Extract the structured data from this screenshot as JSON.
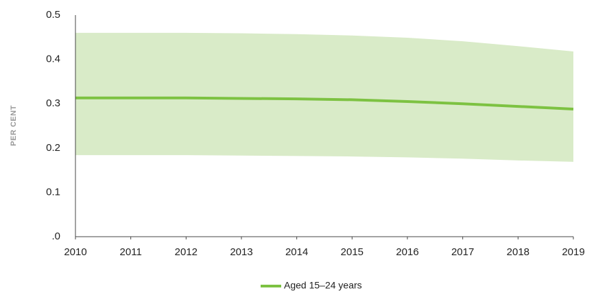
{
  "chart_data": {
    "type": "line",
    "y_label": "PER CENT",
    "x": [
      2010,
      2011,
      2012,
      2013,
      2014,
      2015,
      2016,
      2017,
      2018,
      2019
    ],
    "series": [
      {
        "name": "Aged 15–24 years",
        "color": "#7dc242",
        "band_color": "#d9ebc8",
        "values": [
          0.313,
          0.313,
          0.313,
          0.312,
          0.311,
          0.309,
          0.305,
          0.3,
          0.294,
          0.288
        ],
        "upper": [
          0.46,
          0.46,
          0.46,
          0.459,
          0.457,
          0.454,
          0.449,
          0.441,
          0.43,
          0.418
        ],
        "lower": [
          0.184,
          0.184,
          0.184,
          0.183,
          0.182,
          0.181,
          0.179,
          0.176,
          0.172,
          0.169
        ]
      }
    ],
    "xlim": [
      2010,
      2019
    ],
    "xticks": [
      2010,
      2011,
      2012,
      2013,
      2014,
      2015,
      2016,
      2017,
      2018,
      2019
    ],
    "ylim": [
      0,
      0.5
    ],
    "yticks": [
      {
        "value": 0,
        "label": ".0"
      },
      0.1,
      0.2,
      0.3,
      0.4,
      0.5
    ],
    "grid": false,
    "legend": "bottom"
  }
}
